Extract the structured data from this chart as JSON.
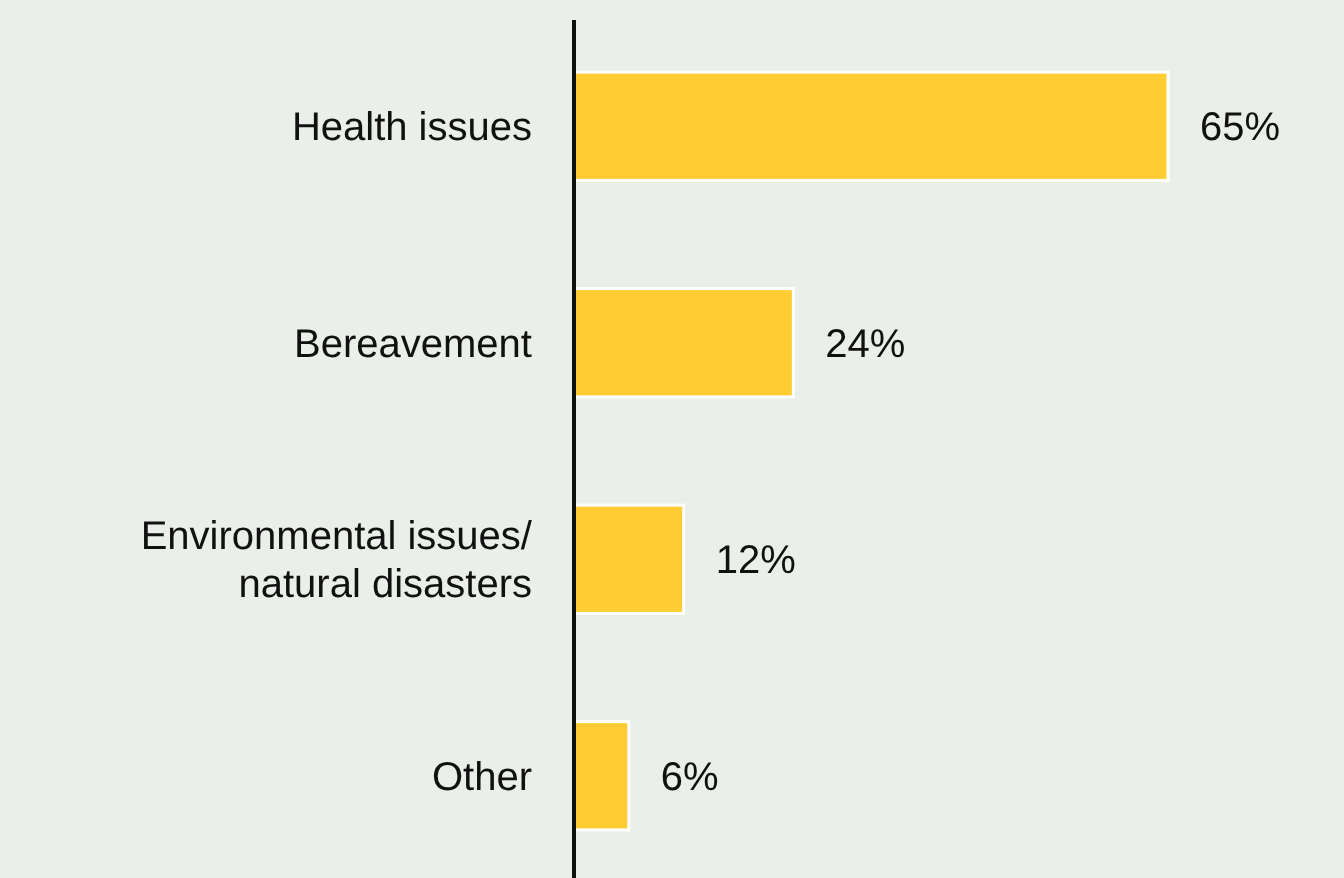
{
  "chart_data": {
    "type": "bar",
    "orientation": "horizontal",
    "categories": [
      "Health issues",
      "Bereavement",
      "Environmental issues/ natural disasters",
      "Other"
    ],
    "values": [
      65,
      24,
      12,
      6
    ],
    "color": "#ffcc33",
    "value_labels": [
      "65%",
      "24%",
      "12%",
      "6%"
    ]
  }
}
